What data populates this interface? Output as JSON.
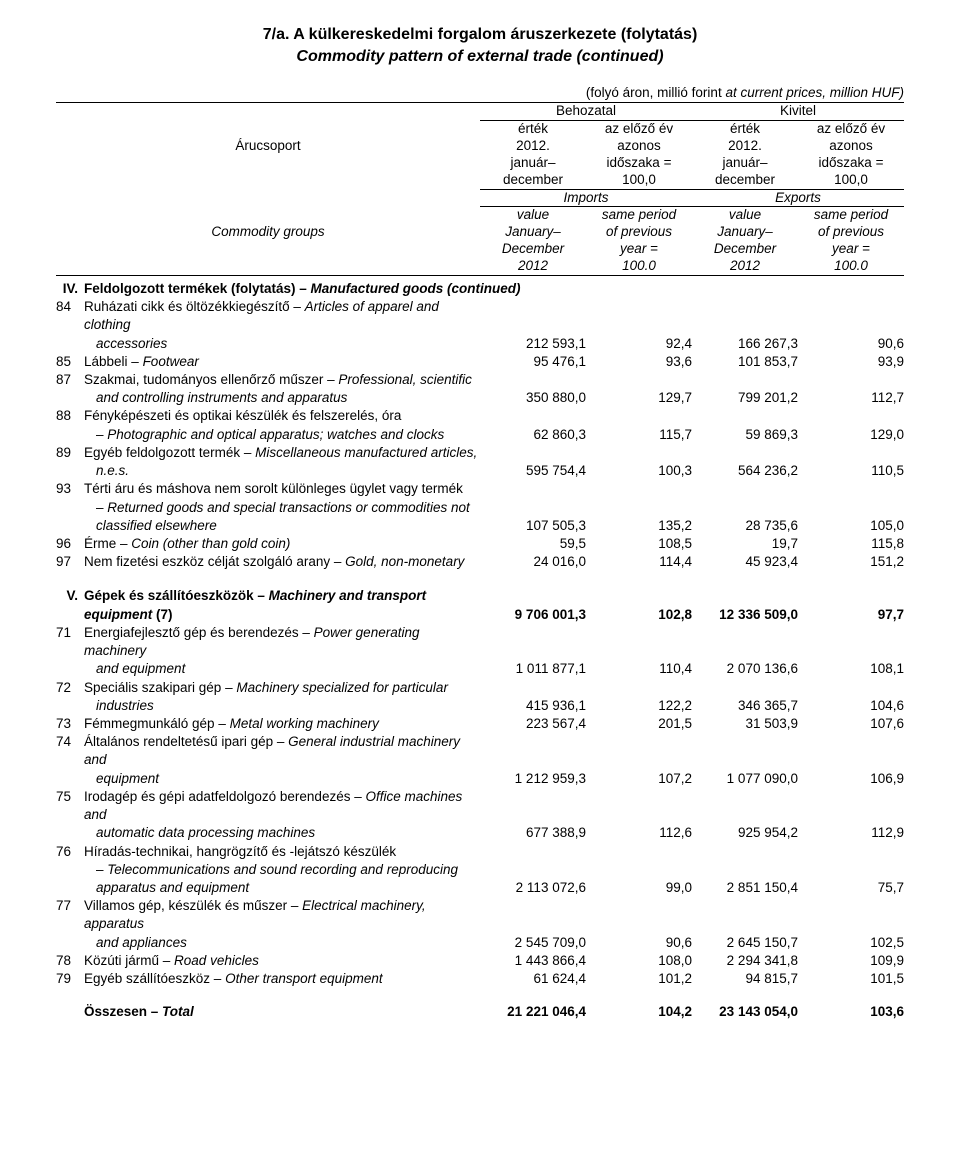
{
  "title_hu": "7/a. A külkereskedelmi forgalom áruszerkezete (folytatás)",
  "title_en": "Commodity pattern of external trade (continued)",
  "note_hu": "(folyó áron, millió forint ",
  "note_en": "at current prices, million HUF)",
  "header": {
    "behozatal": "Behozatal",
    "kivitel": "Kivitel",
    "arucsoport": "Árucsoport",
    "commodity_groups": "Commodity groups",
    "ertek": "érték",
    "ev_2012": "2012.",
    "januar": "január–",
    "december_hu": "december",
    "az_elozo": "az előző év",
    "azonos": "azonos",
    "idoszaka": "időszaka =",
    "szaz": "100,0",
    "imports": "Imports",
    "exports": "Exports",
    "value": "value",
    "january": "January–",
    "december_en": "December",
    "y2012": "2012",
    "same_period": "same period",
    "of_previous": "of previous",
    "year_eq": "year =",
    "hundred": "100.0"
  },
  "section_iv": {
    "roman": "IV.",
    "label_hu": "Feldolgozott termékek (folytatás) – ",
    "label_en": "Manufactured goods (continued)"
  },
  "rows_iv": [
    {
      "code": "84",
      "lines": [
        "Ruházati cikk és öltözékkiegészítő – <i>Articles of apparel and clothing</i>",
        "<i>accessories</i>"
      ],
      "v": [
        "212 593,1",
        "92,4",
        "166 267,3",
        "90,6"
      ]
    },
    {
      "code": "85",
      "lines": [
        "Lábbeli – <i>Footwear</i>"
      ],
      "v": [
        "95 476,1",
        "93,6",
        "101 853,7",
        "93,9"
      ]
    },
    {
      "code": "87",
      "lines": [
        "Szakmai, tudományos ellenőrző műszer – <i>Professional, scientific</i>",
        "<i>and controlling instruments and apparatus</i>"
      ],
      "v": [
        "350 880,0",
        "129,7",
        "799 201,2",
        "112,7"
      ]
    },
    {
      "code": "88",
      "lines": [
        "Fényképészeti és optikai készülék és felszerelés, óra",
        "– <i>Photographic and optical apparatus; watches and clocks</i>"
      ],
      "v": [
        "62 860,3",
        "115,7",
        "59 869,3",
        "129,0"
      ]
    },
    {
      "code": "89",
      "lines": [
        "Egyéb feldolgozott termék – <i>Miscellaneous manufactured articles,</i>",
        "<i>n.e.s.</i>"
      ],
      "v": [
        "595 754,4",
        "100,3",
        "564 236,2",
        "110,5"
      ]
    },
    {
      "code": "93",
      "lines": [
        "Térti áru és máshova nem sorolt különleges ügylet vagy termék",
        "– <i>Returned goods and special transactions or commodities not</i>",
        "<i>classified elsewhere</i>"
      ],
      "v": [
        "107 505,3",
        "135,2",
        "28 735,6",
        "105,0"
      ]
    },
    {
      "code": "96",
      "lines": [
        "Érme – <i>Coin (other than gold coin)</i>"
      ],
      "v": [
        "59,5",
        "108,5",
        "19,7",
        "115,8"
      ]
    },
    {
      "code": "97",
      "lines": [
        "Nem fizetési eszköz célját szolgáló arany – <i>Gold, non-monetary</i>"
      ],
      "v": [
        "24 016,0",
        "114,4",
        "45 923,4",
        "151,2"
      ]
    }
  ],
  "section_v": {
    "roman": "V.",
    "lines": [
      "Gépek és szállítóeszközök – <i>Machinery and transport</i>",
      "<i>equipment</i> (7)"
    ],
    "v": [
      "9 706 001,3",
      "102,8",
      "12 336 509,0",
      "97,7"
    ]
  },
  "rows_v": [
    {
      "code": "71",
      "lines": [
        "Energiafejlesztő gép és berendezés – <i>Power generating machinery</i>",
        "<i>and equipment</i>"
      ],
      "v": [
        "1 011 877,1",
        "110,4",
        "2 070 136,6",
        "108,1"
      ]
    },
    {
      "code": "72",
      "lines": [
        "Speciális szakipari gép – <i>Machinery specialized for particular</i>",
        "<i>industries</i>"
      ],
      "v": [
        "415 936,1",
        "122,2",
        "346 365,7",
        "104,6"
      ]
    },
    {
      "code": "73",
      "lines": [
        "Fémmegmunkáló gép – <i>Metal working machinery</i>"
      ],
      "v": [
        "223 567,4",
        "201,5",
        "31 503,9",
        "107,6"
      ]
    },
    {
      "code": "74",
      "lines": [
        "Általános rendeltetésű ipari gép – <i>General industrial machinery and</i>",
        "<i>equipment</i>"
      ],
      "v": [
        "1 212 959,3",
        "107,2",
        "1 077 090,0",
        "106,9"
      ]
    },
    {
      "code": "75",
      "lines": [
        "Irodagép és gépi adatfeldolgozó berendezés – <i>Office machines and</i>",
        "<i>automatic data processing machines</i>"
      ],
      "v": [
        "677 388,9",
        "112,6",
        "925 954,2",
        "112,9"
      ]
    },
    {
      "code": "76",
      "lines": [
        "Híradás-technikai, hangrögzítő és -lejátszó készülék",
        "– <i>Telecommunications and sound recording and reproducing</i>",
        "<i>apparatus and equipment</i>"
      ],
      "v": [
        "2 113 072,6",
        "99,0",
        "2 851 150,4",
        "75,7"
      ]
    },
    {
      "code": "77",
      "lines": [
        "Villamos gép, készülék és műszer – <i>Electrical machinery, apparatus</i>",
        "<i>and appliances</i>"
      ],
      "v": [
        "2 545 709,0",
        "90,6",
        "2 645 150,7",
        "102,5"
      ]
    },
    {
      "code": "78",
      "lines": [
        "Közúti jármű – <i>Road vehicles</i>"
      ],
      "v": [
        "1 443 866,4",
        "108,0",
        "2 294 341,8",
        "109,9"
      ]
    },
    {
      "code": "79",
      "lines": [
        "Egyéb szállítóeszköz – <i>Other transport equipment</i>"
      ],
      "v": [
        "61 624,4",
        "101,2",
        "94 815,7",
        "101,5"
      ]
    }
  ],
  "total": {
    "label": "Összesen – <i>Total</i>",
    "v": [
      "21 221 046,4",
      "104,2",
      "23 143 054,0",
      "103,6"
    ]
  }
}
